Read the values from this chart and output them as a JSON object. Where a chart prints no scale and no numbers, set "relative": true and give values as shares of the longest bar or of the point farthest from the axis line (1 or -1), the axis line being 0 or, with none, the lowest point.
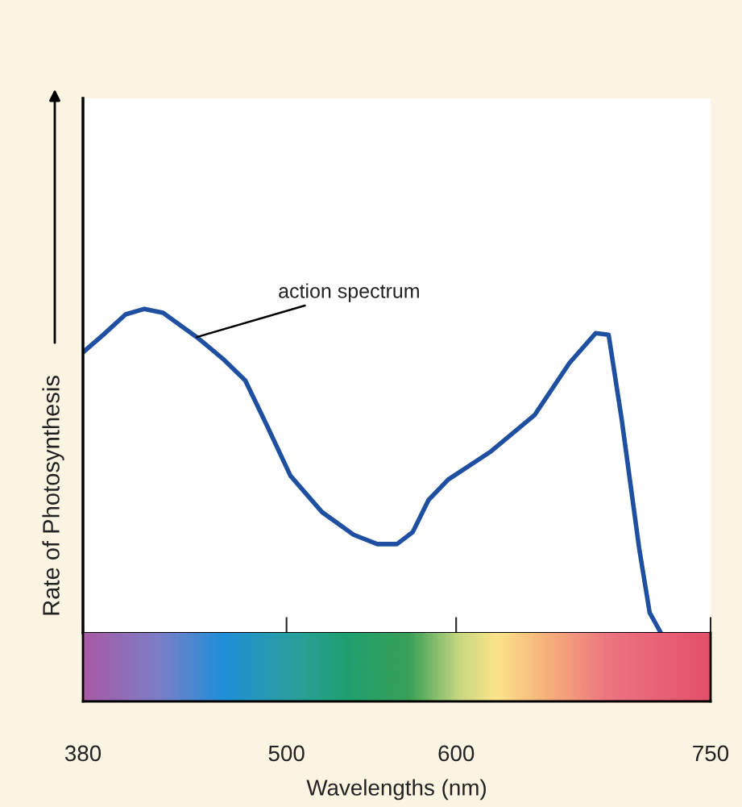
{
  "chart_data": {
    "type": "line",
    "relative": true,
    "xlabel": "Wavelengths (nm)",
    "ylabel": "Rate of Photosynthesis",
    "xlim": [
      380,
      750
    ],
    "xticks": [
      380,
      500,
      600,
      750
    ],
    "x": [
      380,
      391.9,
      405.1,
      416.2,
      427.2,
      447.1,
      462.5,
      475.7,
      489,
      502.3,
      520.9,
      539.5,
      553.5,
      565.1,
      574.4,
      583.7,
      595.3,
      620.5,
      646.2,
      666.8,
      682.2,
      689.9,
      697.6,
      707.9,
      714.1,
      720.7
    ],
    "series": [
      {
        "color": "#1f4fa0",
        "values": [
          0.866,
          0.92,
          0.983,
          1.0,
          0.988,
          0.913,
          0.846,
          0.779,
          0.634,
          0.485,
          0.373,
          0.303,
          0.274,
          0.274,
          0.311,
          0.41,
          0.473,
          0.56,
          0.672,
          0.833,
          0.925,
          0.92,
          0.659,
          0.261,
          0.062,
          0.0
        ]
      }
    ],
    "annotations": [
      {
        "text": "action spectrum",
        "x": 447.1,
        "y": 0.913
      }
    ],
    "grid": false,
    "legend": false,
    "marker": "none",
    "line_style": "solid"
  }
}
